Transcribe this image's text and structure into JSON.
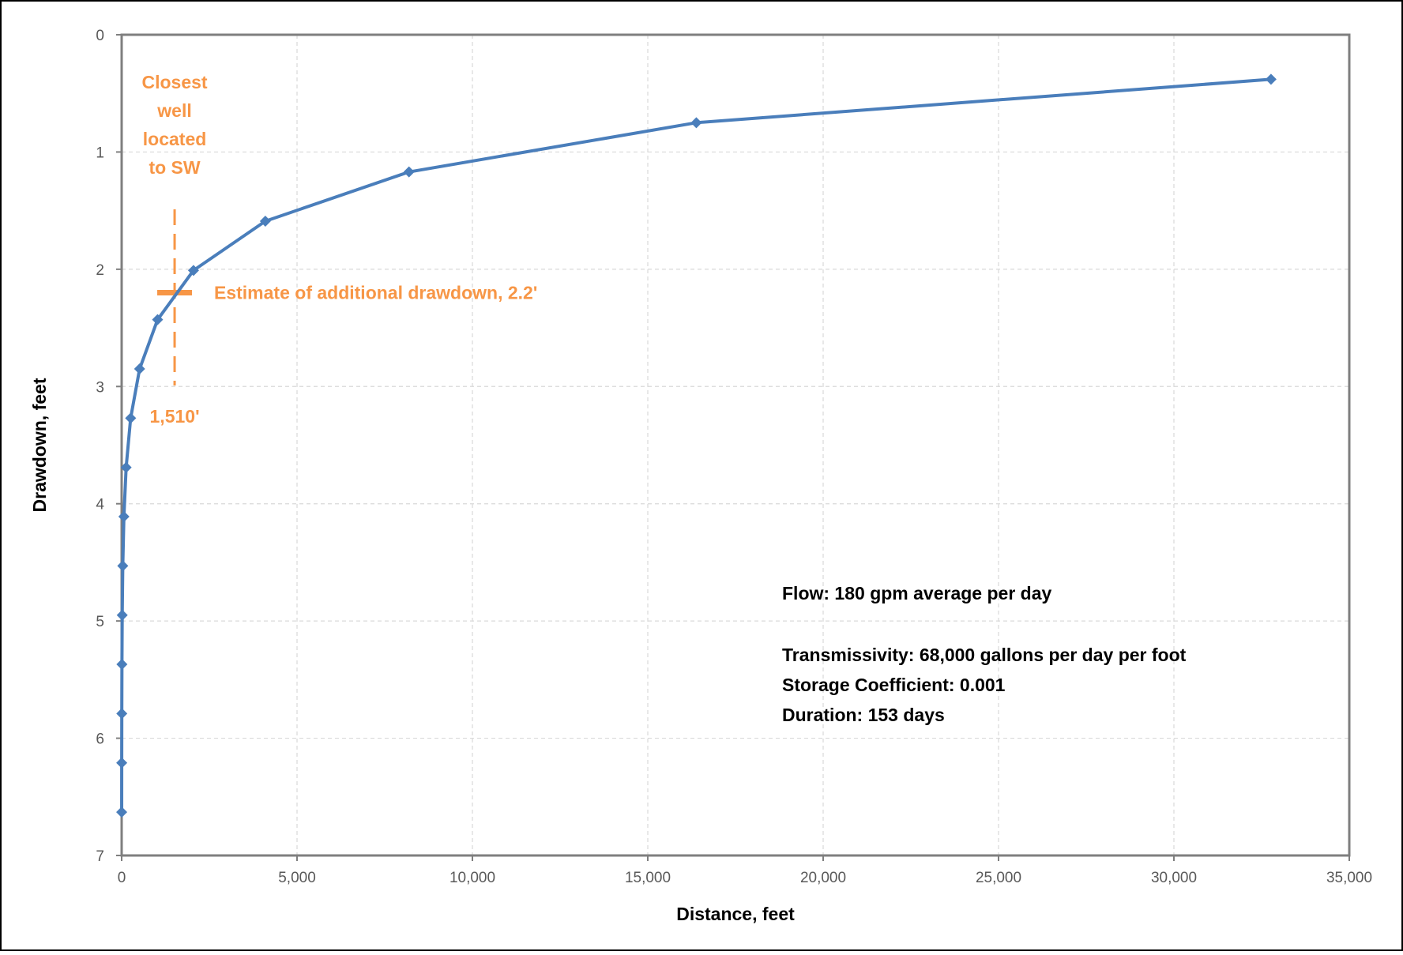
{
  "chart_data": {
    "type": "line",
    "title": "",
    "xlabel": "Distance, feet",
    "ylabel": "Drawdown, feet",
    "xlim": [
      0,
      35000
    ],
    "ylim": [
      0,
      7
    ],
    "y_inverted": true,
    "grid": true,
    "legend": "none",
    "x_ticks": [
      "0",
      "5,000",
      "10,000",
      "15,000",
      "20,000",
      "25,000",
      "30,000",
      "35,000"
    ],
    "y_ticks": [
      "0",
      "1",
      "2",
      "3",
      "4",
      "5",
      "6",
      "7"
    ],
    "series": [
      {
        "color": "#4a7ebb",
        "points": [
          [
            1,
            6.63
          ],
          [
            2,
            6.21
          ],
          [
            4,
            5.79
          ],
          [
            8,
            5.37
          ],
          [
            16,
            4.95
          ],
          [
            32,
            4.53
          ],
          [
            64,
            4.11
          ],
          [
            128,
            3.69
          ],
          [
            256,
            3.27
          ],
          [
            512,
            2.85
          ],
          [
            1024,
            2.43
          ],
          [
            2048,
            2.01
          ],
          [
            4096,
            1.59
          ],
          [
            8192,
            1.17
          ],
          [
            16384,
            0.75
          ],
          [
            32768,
            0.38
          ]
        ]
      }
    ],
    "annotations": {
      "well_label_lines": [
        "Closest",
        "well",
        "located",
        "to SW"
      ],
      "well_distance_x": 1510,
      "well_distance_label": "1,510'",
      "estimate_y": 2.2,
      "estimate_label": "Estimate of additional drawdown, 2.2'",
      "annotation_color": "#f79646"
    },
    "info_lines": [
      "Flow:  180 gpm average per day",
      "",
      "Transmissivity:  68,000 gallons per day per foot",
      "Storage Coefficient:  0.001",
      "Duration:  153 days"
    ]
  }
}
